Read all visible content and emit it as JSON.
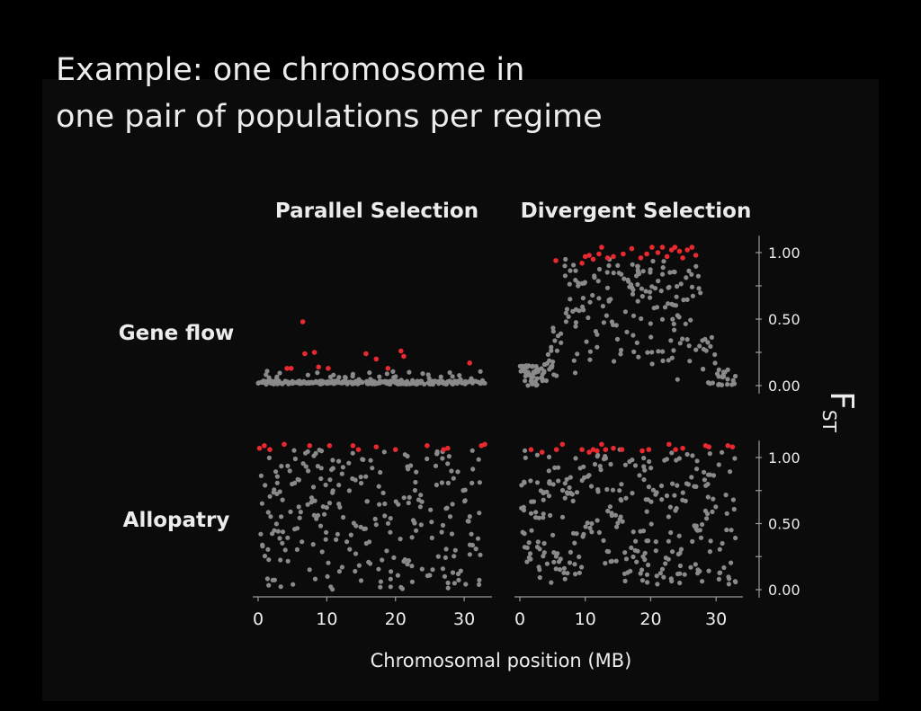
{
  "slide": {
    "title_line1": "Example: one chromosome in",
    "title_line2": "one pair of populations per regime"
  },
  "colors": {
    "background": "#0b0b0c",
    "text": "#ececec",
    "point_normal": "#8a8a8a",
    "point_outlier": "#e8292f",
    "axis": "#9a9a9a"
  },
  "chart_data": {
    "type": "scatter",
    "columns": [
      "Parallel Selection",
      "Divergent Selection"
    ],
    "rows": [
      "Gene flow",
      "Allopatry"
    ],
    "xlabel": "Chromosomal position (MB)",
    "ylabel": "FST",
    "x_ticks": [
      0,
      10,
      20,
      30
    ],
    "x_range": [
      0,
      33
    ],
    "y_ticks": [
      0.0,
      0.5,
      1.0
    ],
    "y_tick_labels": [
      "0.00",
      "0.50",
      "1.00"
    ],
    "y_range": [
      0.0,
      1.1
    ],
    "grid": false,
    "panels": [
      {
        "row": "Gene flow",
        "column": "Parallel Selection",
        "outliers": [
          [
            4.2,
            0.13
          ],
          [
            4.8,
            0.13
          ],
          [
            6.5,
            0.48
          ],
          [
            6.8,
            0.24
          ],
          [
            8.2,
            0.25
          ],
          [
            8.8,
            0.14
          ],
          [
            10.2,
            0.13
          ],
          [
            15.7,
            0.24
          ],
          [
            17.2,
            0.2
          ],
          [
            18.9,
            0.13
          ],
          [
            20.8,
            0.26
          ],
          [
            21.2,
            0.22
          ],
          [
            30.8,
            0.17
          ]
        ],
        "background": {
          "kind": "baseline",
          "n": 300,
          "x": [
            0,
            33
          ],
          "base": 0.01,
          "spread": 0.1,
          "seed": 11
        }
      },
      {
        "row": "Gene flow",
        "column": "Divergent Selection",
        "outliers": [
          [
            5.5,
            0.94
          ],
          [
            9.5,
            0.92
          ],
          [
            10.0,
            0.97
          ],
          [
            10.6,
            0.98
          ],
          [
            11.2,
            0.95
          ],
          [
            12.1,
            0.99
          ],
          [
            12.5,
            1.04
          ],
          [
            13.4,
            0.96
          ],
          [
            14.3,
            0.97
          ],
          [
            15.8,
            0.99
          ],
          [
            17.1,
            1.03
          ],
          [
            18.5,
            0.96
          ],
          [
            19.4,
            0.99
          ],
          [
            20.2,
            1.04
          ],
          [
            21.1,
            1.0
          ],
          [
            21.8,
            1.04
          ],
          [
            22.5,
            0.97
          ],
          [
            23.2,
            1.02
          ],
          [
            23.7,
            1.04
          ],
          [
            24.4,
            1.01
          ],
          [
            24.9,
            0.96
          ],
          [
            25.6,
            1.02
          ],
          [
            26.3,
            1.04
          ],
          [
            26.9,
            0.98
          ]
        ],
        "background": {
          "kind": "plateau",
          "n": 260,
          "x": [
            0,
            33
          ],
          "seed": 23
        }
      },
      {
        "row": "Allopatry",
        "column": "Parallel Selection",
        "outliers": [
          [
            0.2,
            1.07
          ],
          [
            0.9,
            1.09
          ],
          [
            1.7,
            1.06
          ],
          [
            3.8,
            1.1
          ],
          [
            7.5,
            1.09
          ],
          [
            10.4,
            1.09
          ],
          [
            13.8,
            1.09
          ],
          [
            14.6,
            1.06
          ],
          [
            17.2,
            1.08
          ],
          [
            20.0,
            1.06
          ],
          [
            24.6,
            1.09
          ],
          [
            27.0,
            1.06
          ],
          [
            27.6,
            1.07
          ],
          [
            32.5,
            1.09
          ],
          [
            33.0,
            1.1
          ]
        ],
        "background": {
          "kind": "uniform",
          "n": 260,
          "x": [
            0,
            33
          ],
          "y": [
            0.0,
            1.06
          ],
          "seed": 37
        }
      },
      {
        "row": "Allopatry",
        "column": "Divergent Selection",
        "outliers": [
          [
            1.7,
            1.06
          ],
          [
            3.4,
            1.04
          ],
          [
            5.6,
            1.06
          ],
          [
            6.5,
            1.1
          ],
          [
            9.5,
            1.06
          ],
          [
            10.6,
            1.04
          ],
          [
            11.2,
            1.06
          ],
          [
            11.8,
            1.05
          ],
          [
            12.5,
            1.1
          ],
          [
            13.1,
            1.06
          ],
          [
            14.3,
            1.07
          ],
          [
            15.6,
            1.06
          ],
          [
            18.7,
            1.05
          ],
          [
            19.7,
            1.06
          ],
          [
            22.8,
            1.1
          ],
          [
            23.8,
            1.06
          ],
          [
            24.9,
            1.07
          ],
          [
            28.4,
            1.09
          ],
          [
            28.9,
            1.08
          ],
          [
            31.8,
            1.09
          ],
          [
            32.5,
            1.08
          ]
        ],
        "background": {
          "kind": "uniform",
          "n": 300,
          "x": [
            0,
            33
          ],
          "y": [
            0.03,
            1.06
          ],
          "seed": 53
        }
      }
    ]
  }
}
